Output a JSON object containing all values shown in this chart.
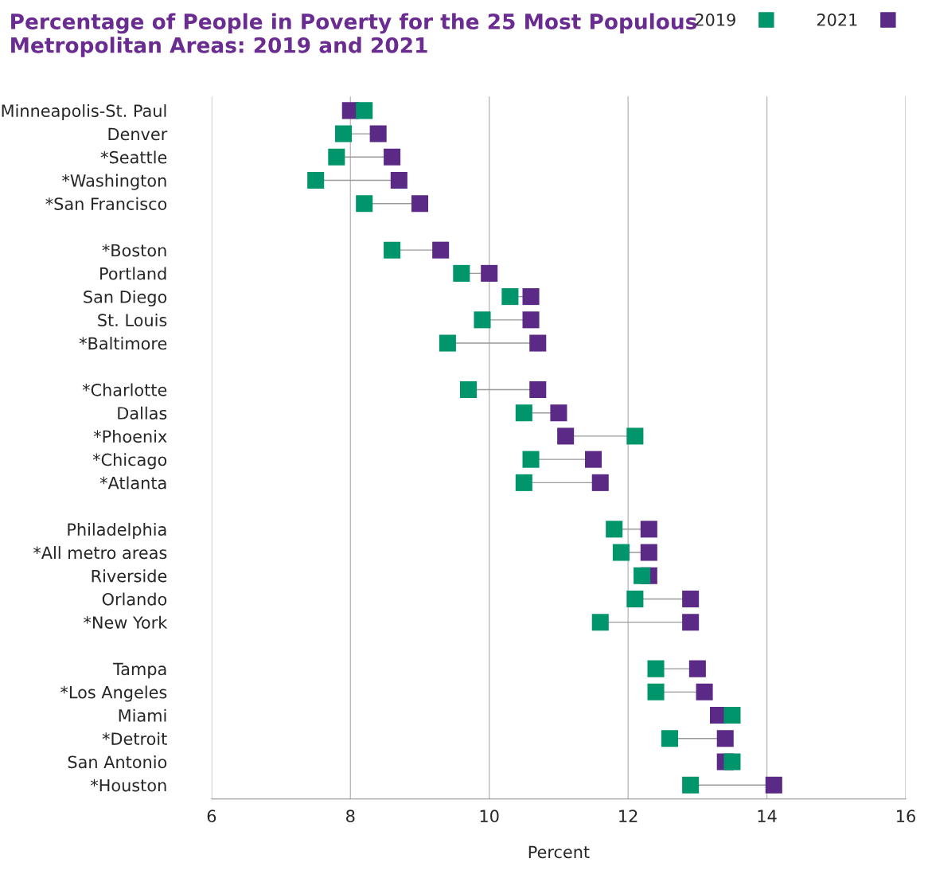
{
  "chart_data": {
    "type": "scatter",
    "title": "Percentage of People in Poverty for the 25 Most Populous Metropolitan Areas: 2019 and 2021",
    "xlabel": "Percent",
    "orientation": "horizontal",
    "categories": [
      "Minneapolis-St. Paul",
      "Denver",
      "*Seattle",
      "*Washington",
      "*San Francisco",
      null,
      "*Boston",
      "Portland",
      "San Diego",
      "St. Louis",
      "*Baltimore",
      null,
      "*Charlotte",
      "Dallas",
      "*Phoenix",
      "*Chicago",
      "*Atlanta",
      null,
      "Philadelphia",
      "*All metro areas",
      "Riverside",
      "Orlando",
      "*New York",
      null,
      "Tampa",
      "*Los Angeles",
      "Miami",
      "*Detroit",
      "San Antonio",
      "*Houston"
    ],
    "series": [
      {
        "name": "2019",
        "color": "#00956a",
        "values": [
          8.2,
          7.9,
          7.8,
          7.5,
          8.2,
          null,
          8.6,
          9.6,
          10.3,
          9.9,
          9.4,
          null,
          9.7,
          10.5,
          12.1,
          10.6,
          10.5,
          null,
          11.8,
          11.9,
          12.2,
          12.1,
          11.6,
          null,
          12.4,
          12.4,
          13.5,
          12.6,
          13.5,
          12.9
        ]
      },
      {
        "name": "2021",
        "color": "#5b2a86",
        "values": [
          8.0,
          8.4,
          8.6,
          8.7,
          9.0,
          null,
          9.3,
          10.0,
          10.6,
          10.6,
          10.7,
          null,
          10.7,
          11.0,
          11.1,
          11.5,
          11.6,
          null,
          12.3,
          12.3,
          12.3,
          12.9,
          12.9,
          null,
          13.0,
          13.1,
          13.3,
          13.4,
          13.4,
          14.1
        ]
      }
    ],
    "xlim": [
      6,
      16
    ],
    "xticks": [
      6,
      8,
      10,
      12,
      14,
      16
    ],
    "grid": "x",
    "legend": "top right",
    "marker": "square"
  }
}
